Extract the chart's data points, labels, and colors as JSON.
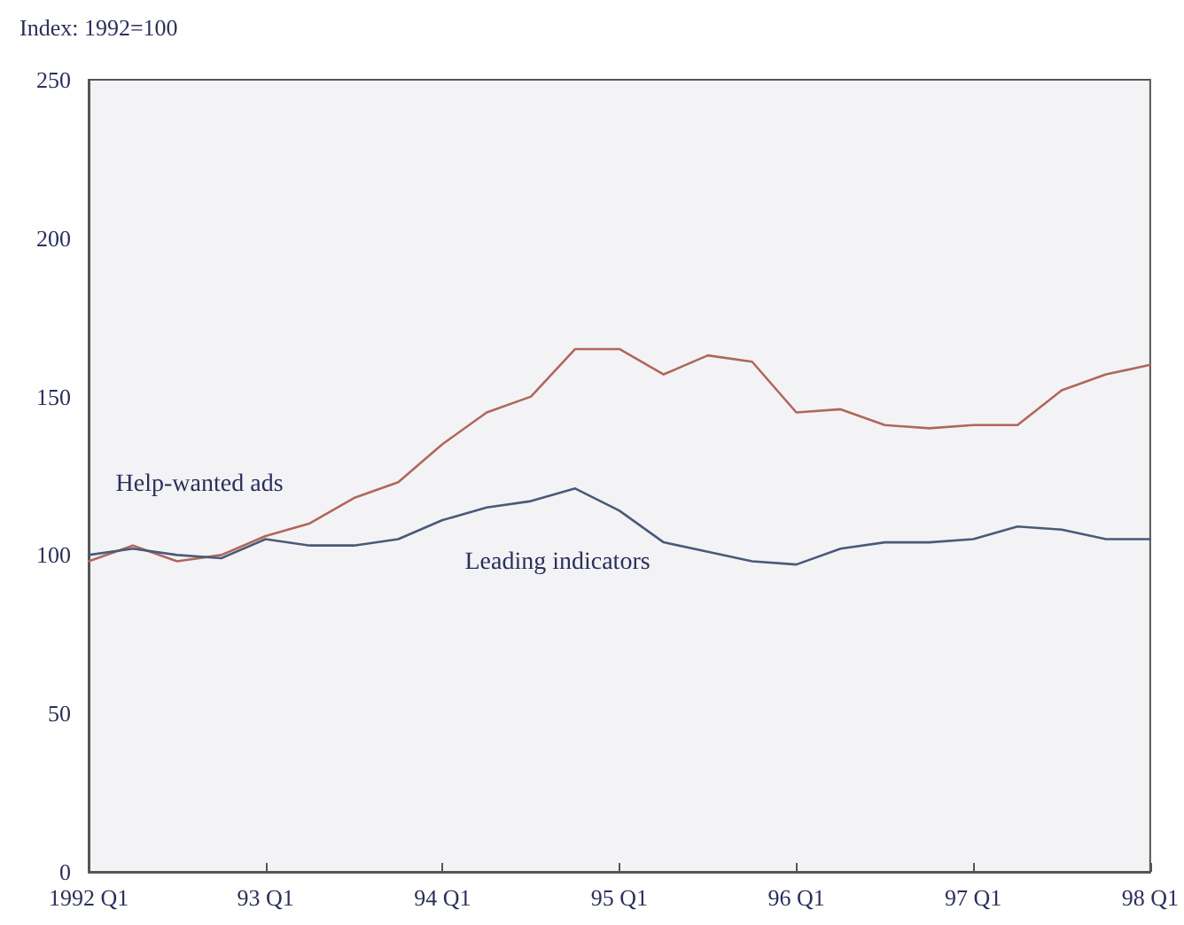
{
  "chart_data": {
    "type": "line",
    "ylabel": "Index: 1992=100",
    "categories": [
      "1992 Q1",
      null,
      null,
      null,
      "93 Q1",
      null,
      null,
      null,
      "94 Q1",
      null,
      null,
      null,
      "95 Q1",
      null,
      null,
      null,
      "96 Q1",
      null,
      null,
      null,
      "97 Q1",
      null,
      null,
      null,
      "98 Q1"
    ],
    "series": [
      {
        "name": "Help-wanted ads",
        "color": "#b0675a",
        "values": [
          98,
          103,
          98,
          100,
          106,
          110,
          118,
          123,
          135,
          145,
          150,
          165,
          165,
          157,
          163,
          161,
          145,
          146,
          141,
          140,
          141,
          141,
          152,
          157,
          160
        ]
      },
      {
        "name": "Leading indicators",
        "color": "#4a5a78",
        "values": [
          100,
          102,
          100,
          99,
          105,
          103,
          103,
          105,
          111,
          115,
          117,
          121,
          114,
          104,
          101,
          98,
          97,
          102,
          104,
          104,
          105,
          109,
          108,
          105,
          105
        ]
      }
    ],
    "ylim": [
      0,
      250
    ],
    "yticks": [
      0,
      50,
      100,
      150,
      200,
      250
    ],
    "grid": false,
    "marker": "none",
    "line_style": "solid"
  }
}
